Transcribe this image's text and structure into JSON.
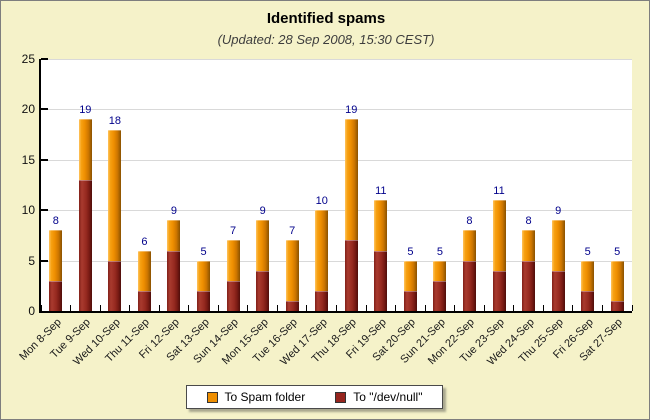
{
  "header": {
    "title": "Identified spams",
    "subtitle": "(Updated: 28 Sep 2008, 15:30 CEST)"
  },
  "chart_data": {
    "type": "bar",
    "stacked": true,
    "title": "Identified spams",
    "subtitle": "(Updated: 28 Sep 2008, 15:30 CEST)",
    "categories": [
      "Mon 8-Sep",
      "Tue 9-Sep",
      "Wed 10-Sep",
      "Thu 11-Sep",
      "Fri 12-Sep",
      "Sat 13-Sep",
      "Sun 14-Sep",
      "Mon 15-Sep",
      "Tue 16-Sep",
      "Wed 17-Sep",
      "Thu 18-Sep",
      "Fri 19-Sep",
      "Sat 20-Sep",
      "Sun 21-Sep",
      "Mon 22-Sep",
      "Tue 23-Sep",
      "Wed 24-Sep",
      "Thu 25-Sep",
      "Fri 26-Sep",
      "Sat 27-Sep"
    ],
    "series": [
      {
        "name": "To Spam folder",
        "color": "#EE8E00",
        "values": [
          5,
          6,
          13,
          4,
          3,
          3,
          4,
          5,
          6,
          8,
          12,
          5,
          3,
          2,
          3,
          7,
          3,
          5,
          3,
          4
        ]
      },
      {
        "name": "To \"/dev/null\"",
        "color": "#96251E",
        "values": [
          3,
          13,
          5,
          2,
          6,
          2,
          3,
          4,
          1,
          2,
          7,
          6,
          2,
          3,
          5,
          4,
          5,
          4,
          2,
          1
        ]
      }
    ],
    "stack_order_bottom_to_top": [
      1,
      0
    ],
    "totals": [
      8,
      19,
      18,
      6,
      9,
      5,
      7,
      9,
      7,
      10,
      19,
      11,
      5,
      5,
      8,
      11,
      8,
      9,
      5,
      5
    ],
    "total_label_color": "#00008B",
    "xlabel": "",
    "ylabel": "",
    "ylim": [
      0,
      25
    ],
    "y_ticks": [
      0,
      5,
      10,
      15,
      20,
      25
    ],
    "grid": true,
    "legend_position": "bottom"
  },
  "colors": {
    "background": "#F5F2C9",
    "plot_background": "#FFFFFF",
    "gridline": "#D9D9D9",
    "axis": "#000000"
  }
}
